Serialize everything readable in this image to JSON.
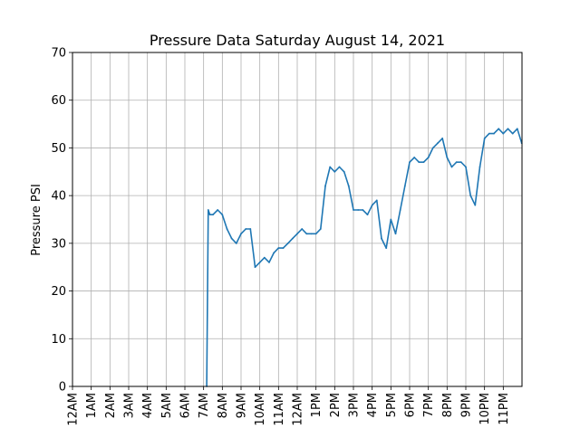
{
  "chart_data": {
    "type": "line",
    "title": "Pressure Data Saturday August 14, 2021",
    "xlabel": "",
    "ylabel": "Pressure PSI",
    "xlim": [
      "12AM",
      "11PM"
    ],
    "ylim": [
      0,
      70
    ],
    "grid": true,
    "legend": "none",
    "x_ticks": [
      "12AM",
      "1AM",
      "2AM",
      "3AM",
      "4AM",
      "5AM",
      "6AM",
      "7AM",
      "8AM",
      "9AM",
      "10AM",
      "11AM",
      "12AM",
      "1PM",
      "2PM",
      "3PM",
      "4PM",
      "5PM",
      "6PM",
      "7PM",
      "8PM",
      "9PM",
      "10PM",
      "11PM"
    ],
    "y_ticks": [
      0,
      10,
      20,
      30,
      40,
      50,
      60,
      70
    ],
    "series": [
      {
        "color": "#1f77b4",
        "x": [
          "7:10AM",
          "7:15AM",
          "7:20AM",
          "7:30AM",
          "7:45AM",
          "8:00AM",
          "8:15AM",
          "8:30AM",
          "8:45AM",
          "9:00AM",
          "9:15AM",
          "9:30AM",
          "9:45AM",
          "10:00AM",
          "10:15AM",
          "10:30AM",
          "10:45AM",
          "11:00AM",
          "11:15AM",
          "11:30AM",
          "11:45AM",
          "12:00PM",
          "12:15PM",
          "12:30PM",
          "12:45PM",
          "1:00PM",
          "1:15PM",
          "1:30PM",
          "1:45PM",
          "2:00PM",
          "2:15PM",
          "2:30PM",
          "2:45PM",
          "3:00PM",
          "3:15PM",
          "3:30PM",
          "3:45PM",
          "4:00PM",
          "4:15PM",
          "4:30PM",
          "4:45PM",
          "5:00PM",
          "5:15PM",
          "5:30PM",
          "5:45PM",
          "6:00PM",
          "6:15PM",
          "6:30PM",
          "6:45PM",
          "7:00PM",
          "7:15PM",
          "7:30PM",
          "7:45PM",
          "8:00PM",
          "8:15PM",
          "8:30PM",
          "8:45PM",
          "9:00PM",
          "9:15PM",
          "9:30PM",
          "9:45PM",
          "10:00PM",
          "10:15PM",
          "10:30PM",
          "10:45PM",
          "11:00PM",
          "11:15PM",
          "11:30PM",
          "11:45PM",
          "11:59PM"
        ],
        "y": [
          0,
          37,
          36,
          36,
          37,
          36,
          33,
          31,
          30,
          32,
          33,
          33,
          25,
          26,
          27,
          26,
          28,
          29,
          29,
          30,
          31,
          32,
          33,
          32,
          32,
          32,
          33,
          42,
          46,
          45,
          46,
          45,
          42,
          37,
          37,
          37,
          36,
          38,
          39,
          31,
          29,
          35,
          32,
          37,
          42,
          47,
          48,
          47,
          47,
          48,
          50,
          51,
          52,
          48,
          46,
          47,
          47,
          46,
          40,
          38,
          46,
          52,
          53,
          53,
          54,
          53,
          54,
          53,
          54,
          51
        ]
      }
    ]
  }
}
